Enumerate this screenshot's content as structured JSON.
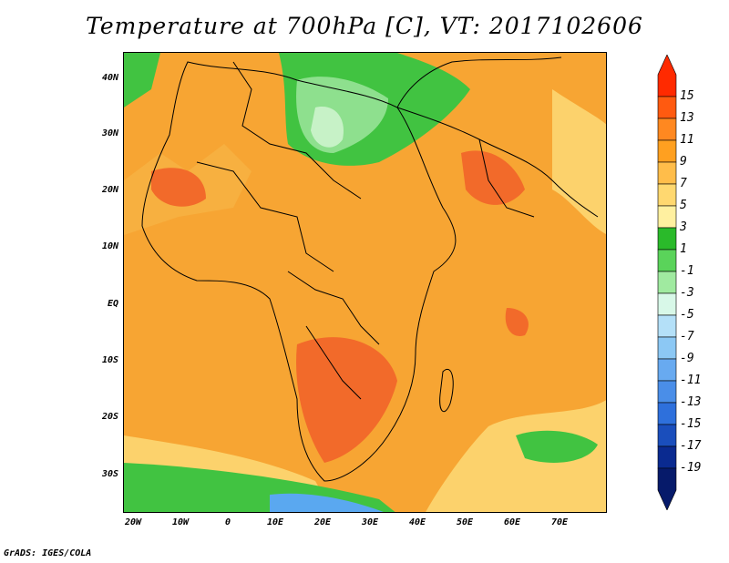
{
  "title": "Temperature at 700hPa [C], VT: 2017102606",
  "credit": "GrADS: IGES/COLA",
  "y_axis_ticks": [
    "40N",
    "30N",
    "20N",
    "10N",
    "EQ",
    "10S",
    "20S",
    "30S"
  ],
  "x_axis_ticks": [
    "20W",
    "10W",
    "0",
    "10E",
    "20E",
    "30E",
    "40E",
    "50E",
    "60E",
    "70E"
  ],
  "colorbar": {
    "labels": [
      "15",
      "13",
      "11",
      "9",
      "7",
      "5",
      "3",
      "1",
      "-1",
      "-3",
      "-5",
      "-7",
      "-9",
      "-11",
      "-13",
      "-15",
      "-17",
      "-19"
    ],
    "colors": [
      "#ff2a00",
      "#ff5a10",
      "#ff8820",
      "#ffa020",
      "#ffbd4a",
      "#ffd870",
      "#fff0a0",
      "#2aba2a",
      "#5ad35a",
      "#a0eaa0",
      "#d8f8e8",
      "#b4e0f8",
      "#8cc8f4",
      "#68aaf0",
      "#4a8ee8",
      "#2e70dc",
      "#1a4ebc",
      "#0a2a90",
      "#061a6a"
    ]
  },
  "field_colors": {
    "hot": "#f26a2a",
    "warm": "#f7a533",
    "orange": "#f7b040",
    "mild": "#fcd26c",
    "cool_green": "#41c341",
    "light_green": "#8ee08e",
    "pale_green": "#c7f2c7",
    "cold_blue": "#5aa8f0"
  }
}
